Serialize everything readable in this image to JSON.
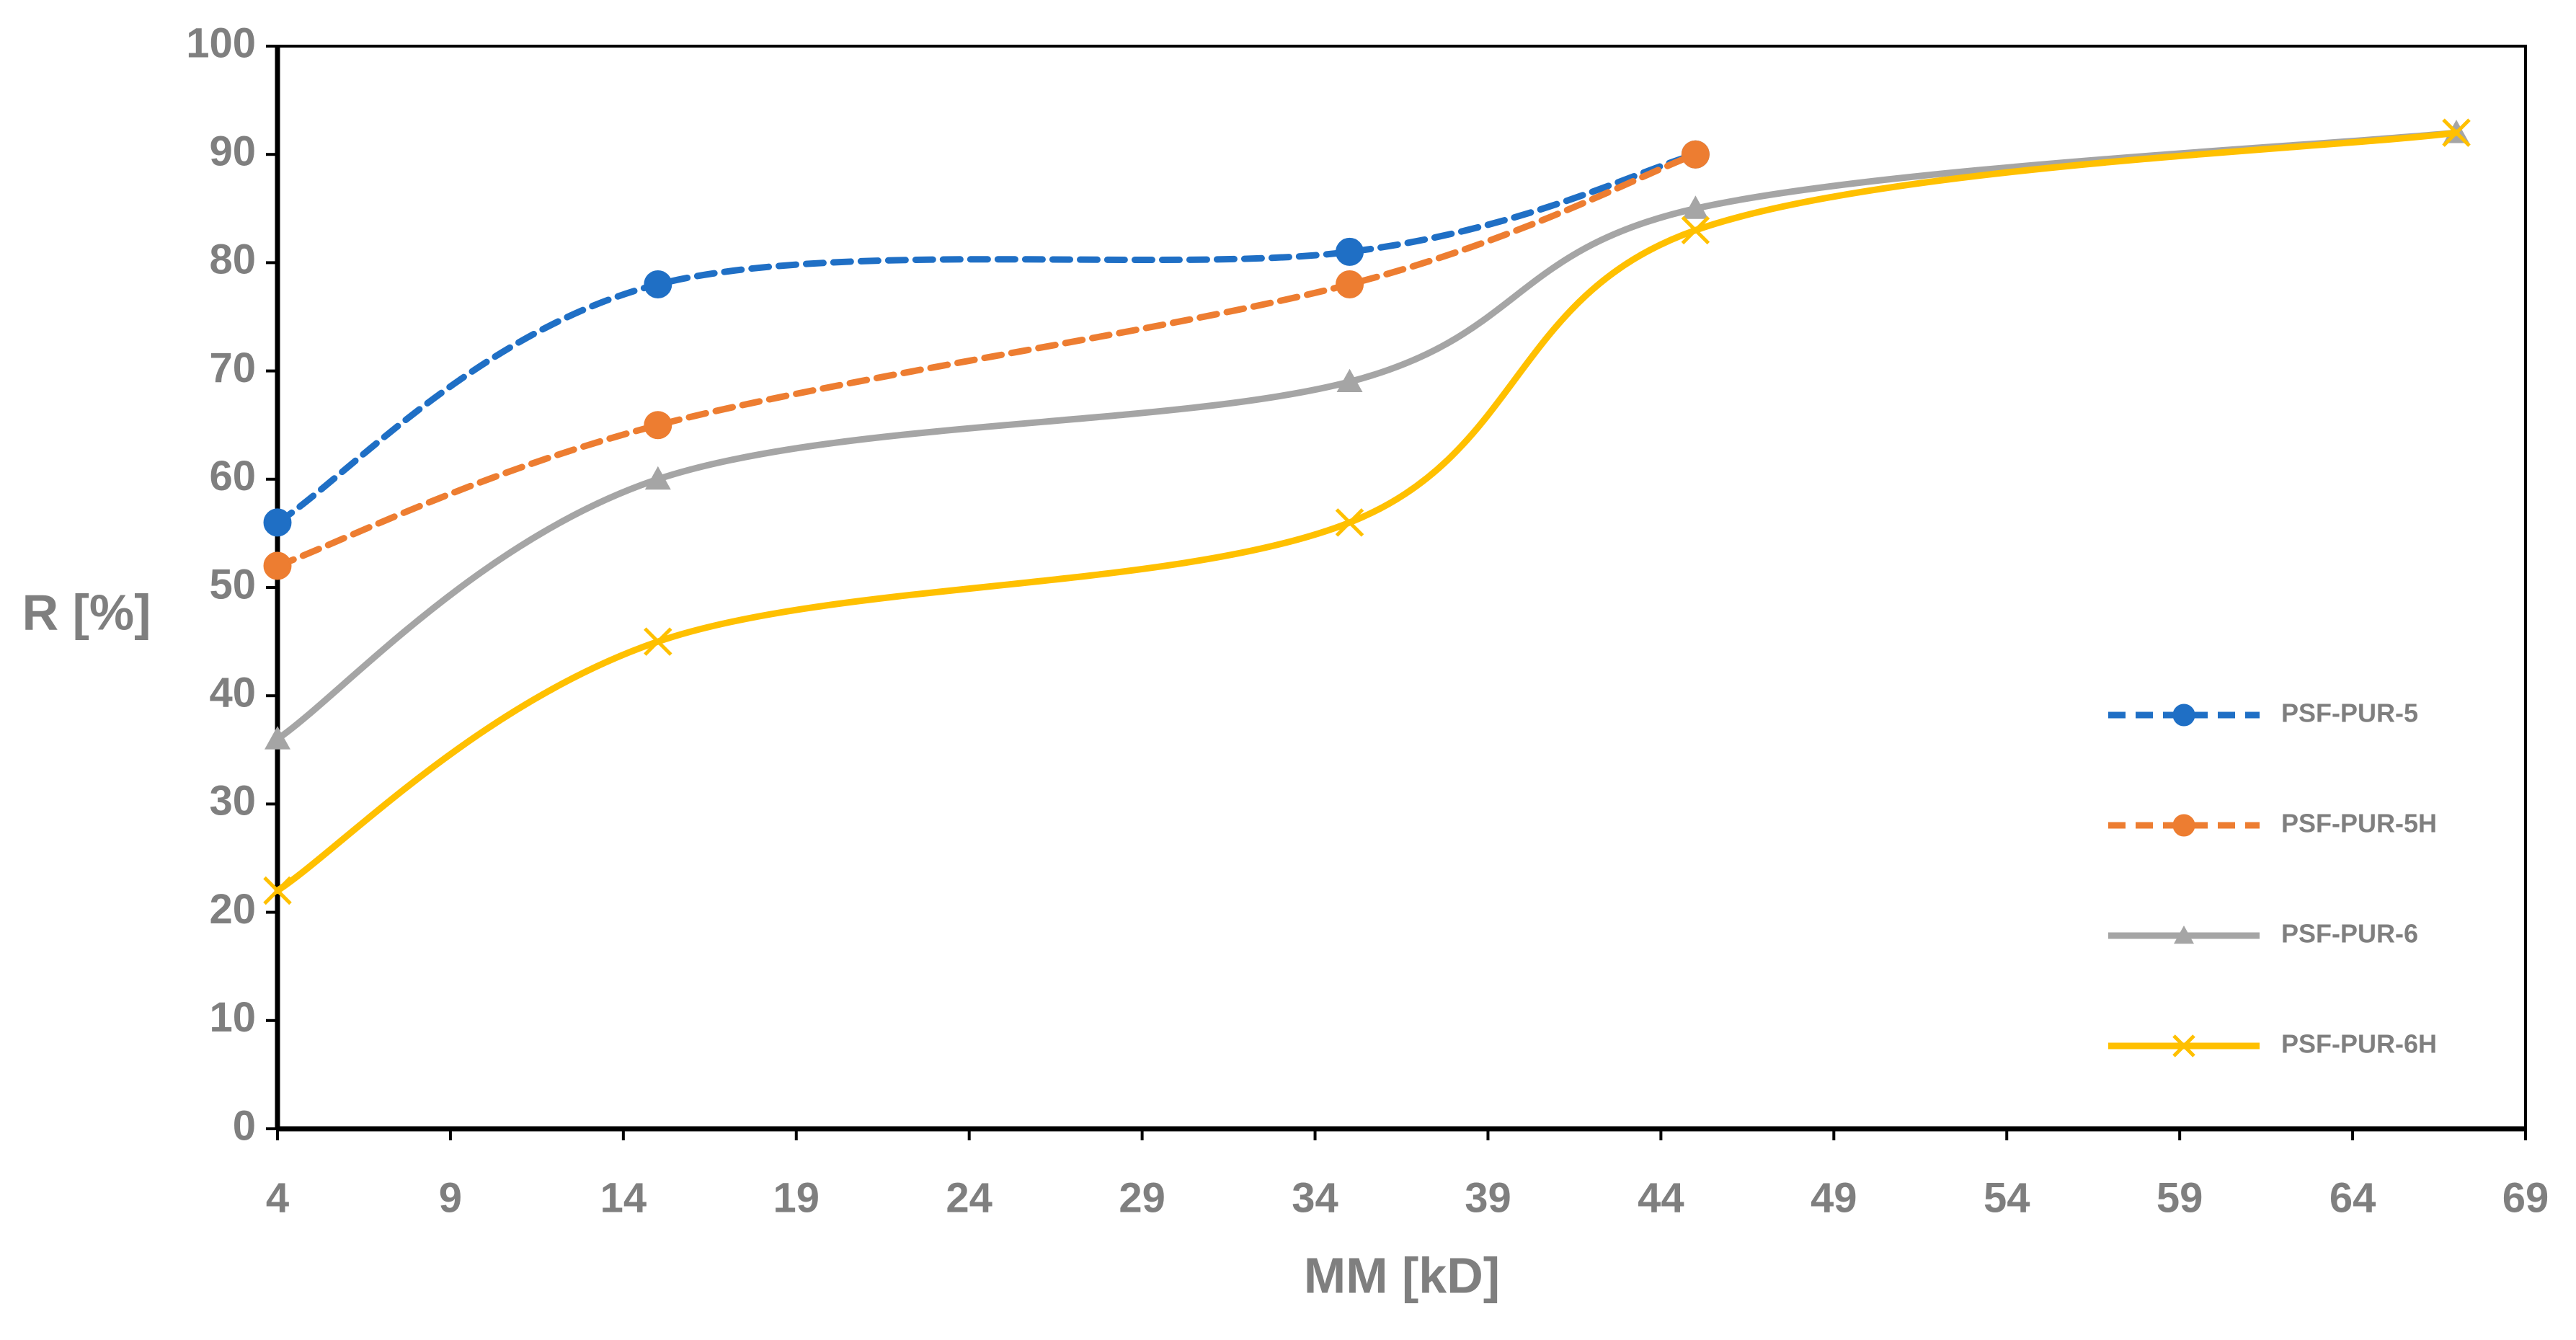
{
  "chart_data": {
    "type": "line",
    "x_label": "MM [kD]",
    "y_label": "R [%]",
    "x": [
      4,
      15,
      35,
      45,
      67
    ],
    "series": [
      {
        "name": "PSF-PUR-5",
        "color": "#1f6fc5",
        "dashed": true,
        "marker": "circle",
        "values": [
          56,
          78,
          81,
          90,
          null
        ]
      },
      {
        "name": "PSF-PUR-5H",
        "color": "#ed7d31",
        "dashed": true,
        "marker": "circle",
        "values": [
          52,
          65,
          78,
          90,
          null
        ]
      },
      {
        "name": "PSF-PUR-6",
        "color": "#a5a5a5",
        "dashed": false,
        "marker": "triangle",
        "values": [
          36,
          60,
          69,
          85,
          92
        ]
      },
      {
        "name": "PSF-PUR-6H",
        "color": "#ffc000",
        "dashed": false,
        "marker": "x",
        "values": [
          22,
          45,
          56,
          83,
          92
        ]
      }
    ],
    "smooth": true,
    "xlim": [
      4,
      69
    ],
    "xticks": [
      4,
      9,
      14,
      19,
      24,
      29,
      34,
      39,
      44,
      49,
      54,
      59,
      64,
      69
    ],
    "ylim": [
      0,
      100
    ],
    "yticks": [
      0,
      10,
      20,
      30,
      40,
      50,
      60,
      70,
      80,
      90,
      100
    ],
    "legend": "right"
  }
}
